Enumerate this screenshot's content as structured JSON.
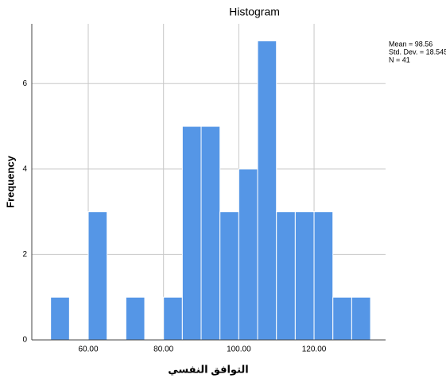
{
  "chart_data": {
    "type": "histogram",
    "title": "Histogram",
    "x_label": "التوافق النفسي",
    "y_label": "Frequency",
    "annotations": [
      "Mean = 98.56",
      "Std. Dev. = 18.545",
      "N = 41"
    ],
    "bins": [
      50,
      55,
      60,
      65,
      70,
      75,
      80,
      85,
      90,
      95,
      100,
      105,
      110,
      115,
      120,
      125,
      130,
      135
    ],
    "values": [
      1,
      0,
      3,
      0,
      1,
      0,
      1,
      5,
      5,
      3,
      4,
      7,
      3,
      3,
      3,
      1,
      1
    ],
    "color": "#5596e6",
    "xlim": [
      45,
      139
    ],
    "ylim": [
      0,
      7.4
    ],
    "xticks": [
      {
        "value": 60,
        "label": "60.00"
      },
      {
        "value": 80,
        "label": "80.00"
      },
      {
        "value": 100,
        "label": "100.00"
      },
      {
        "value": 120,
        "label": "120.00"
      }
    ],
    "yticks": [
      0,
      2,
      4,
      6
    ],
    "grid": true
  }
}
